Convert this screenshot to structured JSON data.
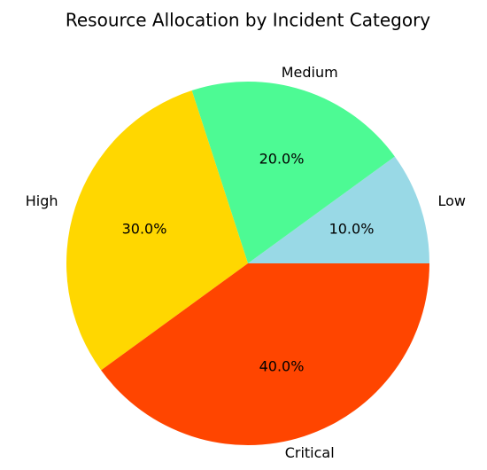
{
  "chart_data": {
    "type": "pie",
    "title": "Resource Allocation by Incident Category",
    "categories": [
      "Low",
      "Medium",
      "High",
      "Critical"
    ],
    "values": [
      10,
      20,
      30,
      40
    ],
    "value_labels": [
      "10.0%",
      "20.0%",
      "30.0%",
      "40.0%"
    ],
    "colors": [
      "#99d9e6",
      "#4dfa94",
      "#ffd700",
      "#ff4500"
    ]
  }
}
